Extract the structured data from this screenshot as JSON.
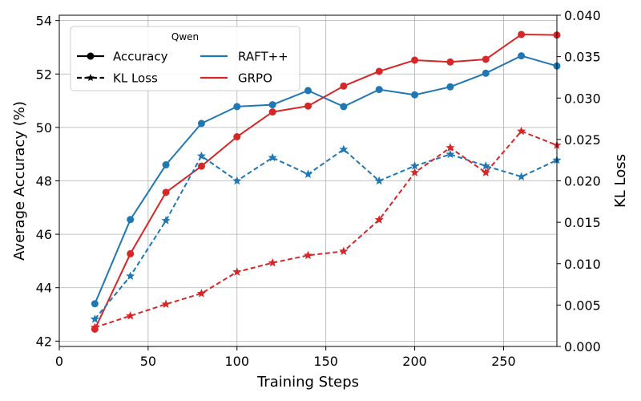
{
  "chart_data": {
    "type": "line",
    "xlabel": "Training Steps",
    "ylabel_left": "Average Accuracy (%)",
    "ylabel_right": "KL Loss",
    "xlim": [
      0,
      280
    ],
    "ylim_left": [
      41.8,
      54.2
    ],
    "ylim_right": [
      0.0,
      0.04
    ],
    "xticks": [
      0,
      50,
      100,
      150,
      200,
      250
    ],
    "yticks_left": [
      42,
      44,
      46,
      48,
      50,
      52,
      54
    ],
    "yticks_right": [
      0.0,
      0.005,
      0.01,
      0.015,
      0.02,
      0.025,
      0.03,
      0.035,
      0.04
    ],
    "yticks_right_labels": [
      "0.000",
      "0.005",
      "0.010",
      "0.015",
      "0.020",
      "0.025",
      "0.030",
      "0.035",
      "0.040"
    ],
    "grid": true,
    "x": [
      20,
      40,
      60,
      80,
      100,
      120,
      140,
      160,
      180,
      200,
      220,
      240,
      260,
      280
    ],
    "series": [
      {
        "name": "RAFT++",
        "metric": "Accuracy",
        "axis": "left",
        "color": "#1f77b4",
        "values": [
          43.4,
          46.55,
          48.6,
          50.15,
          50.78,
          50.85,
          51.38,
          50.78,
          51.42,
          51.22,
          51.52,
          52.03,
          52.68,
          52.3
        ]
      },
      {
        "name": "GRPO",
        "metric": "Accuracy",
        "axis": "left",
        "color": "#d62728",
        "values": [
          42.45,
          45.27,
          47.57,
          48.55,
          49.65,
          50.58,
          50.8,
          51.55,
          52.1,
          52.52,
          52.45,
          52.55,
          53.48,
          53.46
        ]
      },
      {
        "name": "RAFT++",
        "metric": "KL Loss",
        "axis": "right",
        "color": "#1f77b4",
        "values": [
          0.0033,
          0.0085,
          0.0152,
          0.023,
          0.02,
          0.0228,
          0.0208,
          0.0238,
          0.02,
          0.0218,
          0.0232,
          0.0218,
          0.0205,
          0.0225
        ]
      },
      {
        "name": "GRPO",
        "metric": "KL Loss",
        "axis": "right",
        "color": "#d62728",
        "values": [
          0.0023,
          0.0037,
          0.0051,
          0.0064,
          0.009,
          0.0101,
          0.011,
          0.0115,
          0.0153,
          0.021,
          0.024,
          0.021,
          0.026,
          0.0243
        ]
      }
    ],
    "legend": {
      "title": "Qwen",
      "position": "top-left",
      "style_entries": [
        "Accuracy",
        "KL Loss"
      ],
      "color_entries": [
        "RAFT++",
        "GRPO"
      ]
    }
  }
}
